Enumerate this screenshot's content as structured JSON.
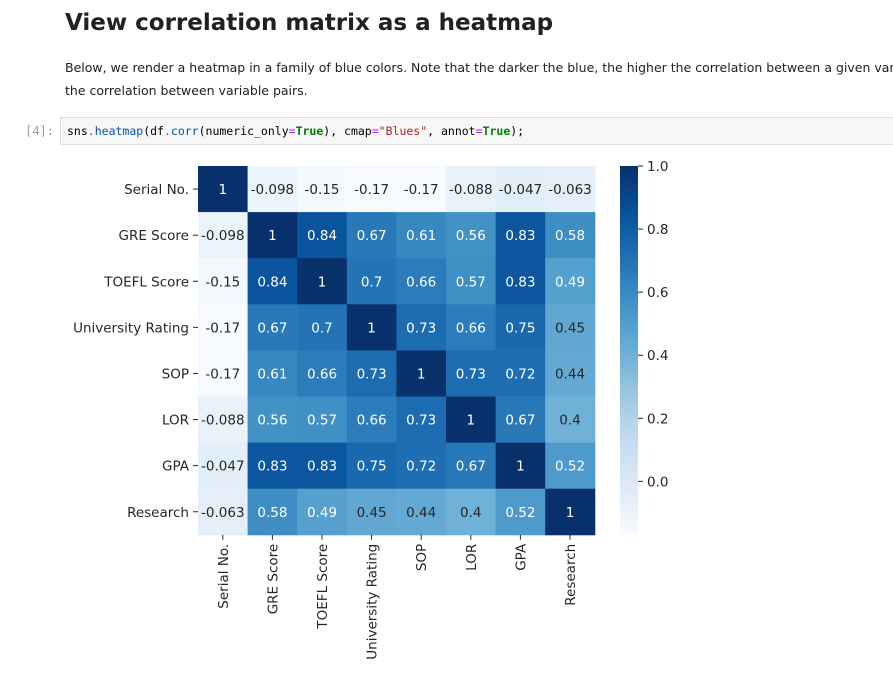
{
  "notebook": {
    "heading": "View correlation matrix as a heatmap",
    "paragraph_line1": "Below, we render a heatmap in a family of blue colors. Note that the darker the blue, the higher the correlation between a given variable pair. The lighter the blue, the lower",
    "paragraph_line2": "the correlation between variable pairs.",
    "cell_prompt": "[4]:",
    "code": {
      "t1": "sns",
      "t2": ".",
      "t3": "heatmap",
      "t4": "(df",
      "t5": ".",
      "t6": "corr",
      "t7": "(numeric_only",
      "t8": "=",
      "t9": "True",
      "t10": "), cmap",
      "t11": "=",
      "t12": "\"Blues\"",
      "t13": ", annot",
      "t14": "=",
      "t15": "True",
      "t16": ");"
    }
  },
  "chart_data": {
    "type": "heatmap",
    "colormap": "Blues",
    "labels": [
      "Serial No.",
      "GRE Score",
      "TOEFL Score",
      "University Rating",
      "SOP",
      "LOR ",
      "GPA",
      "Research"
    ],
    "x_labels": [
      "Serial No.",
      "GRE Score",
      "TOEFL Score",
      "University Rating",
      "SOP",
      "LOR",
      "GPA",
      "Research"
    ],
    "values": [
      [
        1,
        -0.098,
        -0.15,
        -0.17,
        -0.17,
        -0.088,
        -0.047,
        -0.063
      ],
      [
        -0.098,
        1,
        0.84,
        0.67,
        0.61,
        0.56,
        0.83,
        0.58
      ],
      [
        -0.15,
        0.84,
        1,
        0.7,
        0.66,
        0.57,
        0.83,
        0.49
      ],
      [
        -0.17,
        0.67,
        0.7,
        1,
        0.73,
        0.66,
        0.75,
        0.45
      ],
      [
        -0.17,
        0.61,
        0.66,
        0.73,
        1,
        0.73,
        0.72,
        0.44
      ],
      [
        -0.088,
        0.56,
        0.57,
        0.66,
        0.73,
        1,
        0.67,
        0.4
      ],
      [
        -0.047,
        0.83,
        0.83,
        0.75,
        0.72,
        0.67,
        1,
        0.52
      ],
      [
        -0.063,
        0.58,
        0.49,
        0.45,
        0.44,
        0.4,
        0.52,
        1
      ]
    ],
    "annotations": [
      [
        "1",
        "-0.098",
        "-0.15",
        "-0.17",
        "-0.17",
        "-0.088",
        "-0.047",
        "-0.063"
      ],
      [
        "-0.098",
        "1",
        "0.84",
        "0.67",
        "0.61",
        "0.56",
        "0.83",
        "0.58"
      ],
      [
        "-0.15",
        "0.84",
        "1",
        "0.7",
        "0.66",
        "0.57",
        "0.83",
        "0.49"
      ],
      [
        "-0.17",
        "0.67",
        "0.7",
        "1",
        "0.73",
        "0.66",
        "0.75",
        "0.45"
      ],
      [
        "-0.17",
        "0.61",
        "0.66",
        "0.73",
        "1",
        "0.73",
        "0.72",
        "0.44"
      ],
      [
        "-0.088",
        "0.56",
        "0.57",
        "0.66",
        "0.73",
        "1",
        "0.67",
        "0.4"
      ],
      [
        "-0.047",
        "0.83",
        "0.83",
        "0.75",
        "0.72",
        "0.67",
        "1",
        "0.52"
      ],
      [
        "-0.063",
        "0.58",
        "0.49",
        "0.45",
        "0.44",
        "0.4",
        "0.52",
        "1"
      ]
    ],
    "vmin": -0.17,
    "vmax": 1.0,
    "colorbar_ticks": [
      1.0,
      0.8,
      0.6,
      0.4,
      0.2,
      0.0
    ],
    "colorbar_tick_labels": [
      "1.0",
      "0.8",
      "0.6",
      "0.4",
      "0.2",
      "0.0"
    ],
    "x_tick_rotation": "vertical"
  }
}
